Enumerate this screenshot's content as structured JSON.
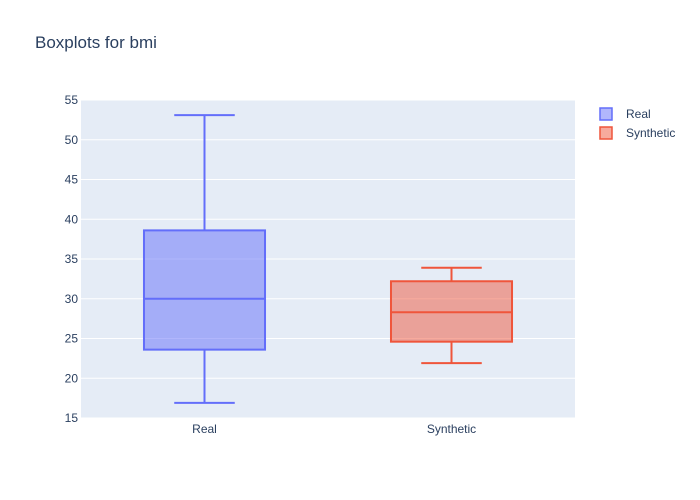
{
  "chart_data": {
    "type": "box",
    "title": "Boxplots for bmi",
    "xlabel": "",
    "ylabel": "",
    "ylim": [
      15,
      55
    ],
    "yticks": [
      15,
      20,
      25,
      30,
      35,
      40,
      45,
      50,
      55
    ],
    "categories": [
      "Real",
      "Synthetic"
    ],
    "grid": true,
    "legend_position": "top-right",
    "series": [
      {
        "name": "Real",
        "color": "#636efa",
        "min": 16.9,
        "q1": 23.6,
        "median": 30.0,
        "q3": 38.6,
        "max": 53.1
      },
      {
        "name": "Synthetic",
        "color": "#ef553b",
        "min": 21.9,
        "q1": 24.6,
        "median": 28.3,
        "q3": 32.2,
        "max": 33.9
      }
    ]
  },
  "colors": {
    "plot_background": "#e5ecf6",
    "gridline": "#ffffff",
    "text": "#2a3f5f"
  }
}
